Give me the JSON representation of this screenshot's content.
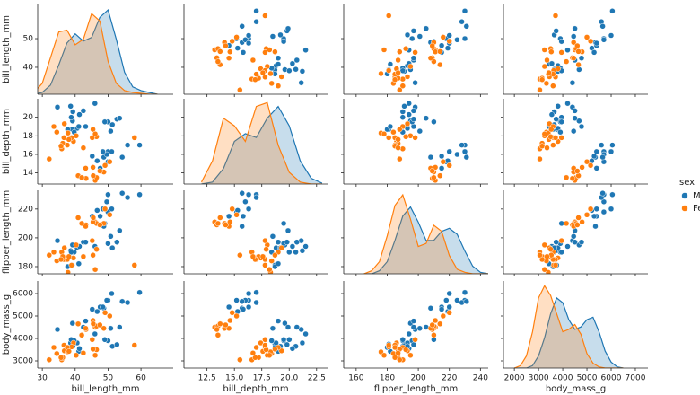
{
  "chart_data": {
    "type": "pairplot",
    "variables": [
      "bill_length_mm",
      "bill_depth_mm",
      "flipper_length_mm",
      "body_mass_g"
    ],
    "legend_title": "sex",
    "axes": [
      {
        "xlim": [
          28.6,
          69.8
        ],
        "xticks": [
          30,
          40,
          50,
          60
        ],
        "ylim": [
          30.6,
          61.9
        ],
        "yticks": [
          40,
          50
        ]
      },
      {
        "xlim": [
          10.4,
          23.5
        ],
        "xticks": [
          12.5,
          {
            "value": 15,
            "label": "15.0"
          },
          17.5,
          {
            "value": 20,
            "label": "20.0"
          },
          22.5
        ],
        "ylim": [
          12.8,
          22
        ],
        "yticks": [
          14,
          16,
          18,
          20
        ]
      },
      {
        "xlim": [
          152,
          245
        ],
        "xticks": [
          160,
          180,
          200,
          220,
          240
        ],
        "ylim": [
          175,
          233
        ],
        "yticks": [
          180,
          200,
          220
        ]
      },
      {
        "xlim": [
          1550,
          7520
        ],
        "xticks": [
          2000,
          3000,
          4000,
          5000,
          6000,
          7000
        ],
        "ylim": [
          2680,
          6560
        ],
        "yticks": [
          3000,
          4000,
          5000,
          6000
        ]
      }
    ],
    "kde_grid": [
      [
        25,
        27.5,
        30,
        32.5,
        35,
        37.5,
        40,
        42.5,
        45,
        47.5,
        50,
        52.5,
        55,
        57.5,
        60,
        62.5,
        65
      ],
      [
        12,
        13,
        14,
        15,
        16,
        17,
        18,
        19,
        20,
        21,
        22,
        23
      ],
      [
        165,
        170,
        175,
        180,
        185,
        190,
        195,
        200,
        205,
        210,
        215,
        220,
        225,
        230,
        235,
        240,
        245
      ],
      [
        2000,
        2250,
        2500,
        2750,
        3000,
        3250,
        3500,
        3750,
        4000,
        4250,
        4500,
        4750,
        5000,
        5250,
        5500,
        5750,
        6000,
        6250,
        6500
      ]
    ],
    "kde_ylim": [
      [
        0,
        0.049
      ],
      [
        0,
        0.22
      ],
      [
        0,
        0.055
      ],
      [
        0,
        0.00072
      ]
    ],
    "series": [
      {
        "name": "Male",
        "color": "#1f77b4",
        "data": [
          [
            39.1,
            39.3,
            39.2,
            38.6,
            34.6,
            42.5,
            46.0,
            37.7,
            40.6,
            41.1,
            39.7,
            43.2,
            41.3,
            38.8,
            50.0,
            51.3,
            52.7,
            49.0,
            53.5,
            50.8,
            50.0,
            48.7,
            50.0,
            47.6,
            46.7,
            49.6,
            45.2,
            59.6,
            51.1,
            48.4,
            55.9,
            54.3
          ],
          [
            18.7,
            20.6,
            19.6,
            21.2,
            21.1,
            20.7,
            21.5,
            18.7,
            18.8,
            19.0,
            18.4,
            19.0,
            20.3,
            20.0,
            19.5,
            19.2,
            19.8,
            19.5,
            19.9,
            18.5,
            16.3,
            15.7,
            15.2,
            14.5,
            15.3,
            16.0,
            15.8,
            17.0,
            16.3,
            16.3,
            17.0,
            15.7
          ],
          [
            181,
            190,
            195,
            191,
            198,
            197,
            194,
            180,
            193,
            182,
            190,
            197,
            194,
            190,
            196,
            193,
            197,
            210,
            205,
            201,
            230,
            208,
            218,
            215,
            219,
            225,
            215,
            230,
            220,
            220,
            228,
            231
          ],
          [
            3750,
            3650,
            4675,
            3800,
            4400,
            4500,
            4200,
            3600,
            3800,
            3425,
            3900,
            4775,
            3550,
            3950,
            3900,
            3650,
            3725,
            3950,
            4500,
            4450,
            5700,
            5350,
            5700,
            5400,
            5200,
            5700,
            5300,
            6050,
            6000,
            5400,
            5600,
            5650
          ]
        ],
        "kde": [
          [
            0,
            0,
            0.001,
            0.005,
            0.016,
            0.028,
            0.033,
            0.029,
            0.031,
            0.042,
            0.046,
            0.03,
            0.012,
            0.004,
            0.002,
            0.001,
            0
          ],
          [
            0,
            0.005,
            0.04,
            0.11,
            0.13,
            0.12,
            0.17,
            0.2,
            0.15,
            0.06,
            0.015,
            0.002
          ],
          [
            0,
            0,
            0.002,
            0.008,
            0.022,
            0.038,
            0.044,
            0.034,
            0.022,
            0.022,
            0.028,
            0.03,
            0.026,
            0.015,
            0.005,
            0.001,
            0
          ],
          [
            0,
            0,
            0,
            2e-05,
            0.0001,
            0.00025,
            0.00045,
            0.00058,
            0.00054,
            0.0004,
            0.00032,
            0.00034,
            0.0004,
            0.00042,
            0.0003,
            0.00014,
            5e-05,
            1e-05,
            0
          ]
        ]
      },
      {
        "name": "Female",
        "color": "#ff7f0e",
        "data": [
          [
            39.5,
            40.3,
            36.7,
            38.9,
            36.6,
            34.4,
            37.8,
            35.9,
            33.5,
            36.2,
            37.6,
            35.7,
            38.1,
            32.1,
            46.5,
            45.4,
            45.2,
            46.1,
            58.0,
            42.5,
            46.1,
            48.7,
            46.5,
            45.4,
            43.3,
            40.9,
            45.5,
            42.0,
            49.1,
            43.2,
            47.5,
            50.5
          ],
          [
            17.4,
            18.0,
            19.3,
            17.8,
            17.8,
            18.4,
            18.3,
            16.6,
            19.0,
            17.2,
            17.0,
            16.9,
            17.6,
            15.5,
            17.9,
            18.7,
            17.8,
            18.2,
            17.8,
            16.7,
            13.2,
            14.1,
            13.5,
            14.6,
            13.4,
            13.7,
            13.7,
            13.5,
            14.8,
            14.5,
            14.2,
            15.2
          ],
          [
            186,
            195,
            193,
            181,
            185,
            184,
            176,
            190,
            190,
            187,
            185,
            185,
            187,
            188,
            192,
            188,
            198,
            178,
            181,
            187,
            211,
            210,
            210,
            211,
            209,
            214,
            214,
            210,
            220,
            208,
            209,
            216
          ],
          [
            3800,
            3250,
            3450,
            3625,
            3700,
            3325,
            3400,
            3050,
            3600,
            3150,
            3600,
            3150,
            3425,
            3050,
            3500,
            3525,
            3950,
            3250,
            3700,
            3350,
            4500,
            4450,
            4550,
            4800,
            4400,
            4650,
            4650,
            4150,
            5150,
            4450,
            4600,
            5000
          ]
        ],
        "kde": [
          [
            0,
            0.001,
            0.006,
            0.02,
            0.034,
            0.035,
            0.027,
            0.03,
            0.044,
            0.04,
            0.018,
            0.006,
            0.002,
            0.001,
            0.0005,
            0,
            0
          ],
          [
            0.005,
            0.06,
            0.17,
            0.15,
            0.11,
            0.2,
            0.21,
            0.1,
            0.03,
            0.005,
            0,
            0
          ],
          [
            0,
            0.002,
            0.008,
            0.025,
            0.045,
            0.052,
            0.036,
            0.018,
            0.02,
            0.032,
            0.028,
            0.012,
            0.003,
            0.001,
            0,
            0,
            0
          ],
          [
            0,
            2e-05,
            0.0001,
            0.0003,
            0.00058,
            0.00068,
            0.0006,
            0.00045,
            0.0003,
            0.00032,
            0.00036,
            0.00028,
            0.00012,
            4e-05,
            1e-05,
            0,
            0,
            0,
            0
          ]
        ]
      }
    ]
  }
}
